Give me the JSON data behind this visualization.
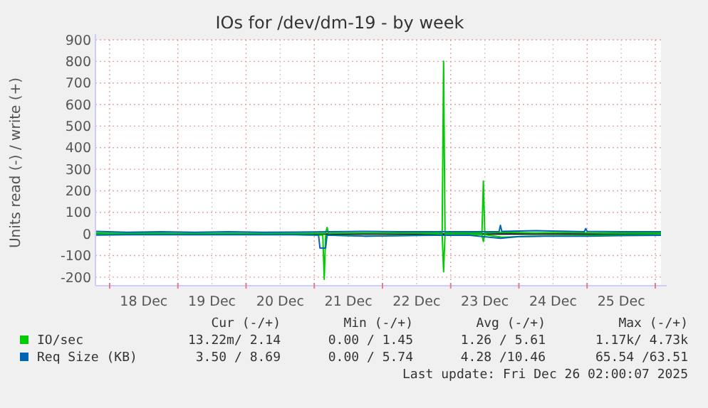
{
  "chart_data": {
    "type": "line",
    "title": "IOs for /dev/dm-19 - by week",
    "ylabel": "Units read (-) / write (+)",
    "xlim": [
      "2025-12-17T19:00",
      "2025-12-26T02:00"
    ],
    "xticks": [
      {
        "value": "2025-12-18T00:00",
        "label": null
      },
      {
        "value": "2025-12-18T12:00",
        "label": "18 Dec"
      },
      {
        "value": "2025-12-19T00:00",
        "label": null
      },
      {
        "value": "2025-12-19T12:00",
        "label": "19 Dec"
      },
      {
        "value": "2025-12-20T00:00",
        "label": null
      },
      {
        "value": "2025-12-20T12:00",
        "label": "20 Dec"
      },
      {
        "value": "2025-12-21T00:00",
        "label": null
      },
      {
        "value": "2025-12-21T12:00",
        "label": "21 Dec"
      },
      {
        "value": "2025-12-22T00:00",
        "label": null
      },
      {
        "value": "2025-12-22T12:00",
        "label": "22 Dec"
      },
      {
        "value": "2025-12-23T00:00",
        "label": null
      },
      {
        "value": "2025-12-23T12:00",
        "label": "23 Dec"
      },
      {
        "value": "2025-12-24T00:00",
        "label": null
      },
      {
        "value": "2025-12-24T12:00",
        "label": "24 Dec"
      },
      {
        "value": "2025-12-25T00:00",
        "label": null
      },
      {
        "value": "2025-12-25T12:00",
        "label": "25 Dec"
      },
      {
        "value": "2025-12-26T00:00",
        "label": null
      }
    ],
    "ylim": [
      -240,
      900
    ],
    "yticks": [
      -200,
      -100,
      0,
      100,
      200,
      300,
      400,
      500,
      600,
      700,
      800,
      900
    ],
    "grid": true,
    "legend": "bottom",
    "marker": "none",
    "line_style": "solid",
    "ref_lines": [
      {
        "axis": "y",
        "value": 0,
        "color": "#000000"
      }
    ],
    "series": [
      {
        "name": "IO/sec",
        "color": "#00cc00",
        "x": [
          "2025-12-17T19:00",
          "2025-12-18T00:00",
          "2025-12-18T12:00",
          "2025-12-19T00:00",
          "2025-12-19T12:00",
          "2025-12-20T00:00",
          "2025-12-20T12:00",
          "2025-12-21T00:00",
          "2025-12-21T04:00",
          "2025-12-21T04:30",
          "2025-12-21T05:00",
          "2025-12-21T18:00",
          "2025-12-22T06:00",
          "2025-12-22T18:00",
          "2025-12-22T21:00",
          "2025-12-22T21:30",
          "2025-12-22T22:00",
          "2025-12-23T11:00",
          "2025-12-23T11:30",
          "2025-12-23T12:00",
          "2025-12-23T18:00",
          "2025-12-24T06:00",
          "2025-12-24T18:00",
          "2025-12-25T06:00",
          "2025-12-25T18:00",
          "2025-12-26T02:00"
        ],
        "values": [
          5,
          3,
          4,
          3,
          3,
          3,
          3,
          3,
          3,
          30,
          3,
          5,
          4,
          4,
          5,
          800,
          5,
          5,
          245,
          5,
          8,
          5,
          6,
          4,
          5,
          5
        ]
      },
      {
        "color": "#00cc00",
        "x": [
          "2025-12-17T19:00",
          "2025-12-18T12:00",
          "2025-12-19T12:00",
          "2025-12-20T12:00",
          "2025-12-21T03:00",
          "2025-12-21T03:30",
          "2025-12-21T04:00",
          "2025-12-21T18:00",
          "2025-12-22T06:00",
          "2025-12-22T21:00",
          "2025-12-22T21:30",
          "2025-12-22T22:00",
          "2025-12-23T11:00",
          "2025-12-23T11:30",
          "2025-12-23T12:00",
          "2025-12-23T18:00",
          "2025-12-24T06:00",
          "2025-12-24T18:00",
          "2025-12-25T06:00",
          "2025-12-26T02:00"
        ],
        "values": [
          -3,
          -2,
          -2,
          -2,
          -5,
          -210,
          -5,
          -10,
          -8,
          -3,
          -175,
          -3,
          -3,
          -35,
          -3,
          -15,
          -10,
          -8,
          -5,
          -3
        ]
      },
      {
        "name": "Req Size (KB)",
        "color": "#0066b3",
        "x": [
          "2025-12-17T19:00",
          "2025-12-18T06:00",
          "2025-12-18T18:00",
          "2025-12-19T06:00",
          "2025-12-19T18:00",
          "2025-12-20T06:00",
          "2025-12-20T18:00",
          "2025-12-21T06:00",
          "2025-12-21T18:00",
          "2025-12-22T06:00",
          "2025-12-22T18:00",
          "2025-12-23T06:00",
          "2025-12-23T17:00",
          "2025-12-23T17:30",
          "2025-12-23T18:00",
          "2025-12-24T06:00",
          "2025-12-24T18:00",
          "2025-12-24T23:00",
          "2025-12-24T23:30",
          "2025-12-25T00:00",
          "2025-12-25T12:00",
          "2025-12-26T02:00"
        ],
        "values": [
          12,
          8,
          10,
          8,
          10,
          8,
          9,
          10,
          12,
          10,
          10,
          10,
          10,
          40,
          12,
          15,
          12,
          10,
          25,
          12,
          10,
          10
        ]
      },
      {
        "color": "#0066b3",
        "x": [
          "2025-12-17T19:00",
          "2025-12-18T06:00",
          "2025-12-18T18:00",
          "2025-12-19T06:00",
          "2025-12-19T18:00",
          "2025-12-20T06:00",
          "2025-12-20T18:00",
          "2025-12-21T01:30",
          "2025-12-21T02:00",
          "2025-12-21T04:00",
          "2025-12-21T04:30",
          "2025-12-21T18:00",
          "2025-12-22T06:00",
          "2025-12-22T18:00",
          "2025-12-23T06:00",
          "2025-12-23T17:30",
          "2025-12-24T00:00",
          "2025-12-24T12:00",
          "2025-12-25T00:00",
          "2025-12-25T12:00",
          "2025-12-26T02:00"
        ],
        "values": [
          -5,
          -4,
          -4,
          -4,
          -4,
          -4,
          -4,
          -5,
          -65,
          -65,
          -5,
          -10,
          -8,
          -6,
          -5,
          -20,
          -12,
          -10,
          -10,
          -8,
          -6
        ]
      }
    ],
    "annotations": [
      "Cur (-/+)",
      "Min (-/+)",
      "Avg (-/+)",
      "Max (-/+)",
      "13.22m/ 2.14",
      "0.00 / 1.45",
      "1.26 / 5.61",
      "1.17k/ 4.73k",
      "3.50 / 8.69",
      "0.00 / 5.74",
      "4.28 /10.46",
      "65.54 /63.51",
      "Last update: Fri Dec 26 02:00:07 2025"
    ]
  }
}
